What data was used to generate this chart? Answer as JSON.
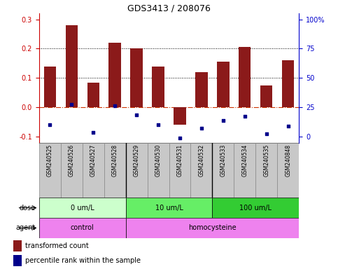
{
  "title": "GDS3413 / 208076",
  "samples": [
    "GSM240525",
    "GSM240526",
    "GSM240527",
    "GSM240528",
    "GSM240529",
    "GSM240530",
    "GSM240531",
    "GSM240532",
    "GSM240533",
    "GSM240534",
    "GSM240535",
    "GSM240848"
  ],
  "red_bars": [
    0.14,
    0.28,
    0.085,
    0.22,
    0.2,
    0.14,
    -0.06,
    0.12,
    0.155,
    0.205,
    0.075,
    0.16
  ],
  "blue_squares_left": [
    -0.06,
    0.01,
    -0.085,
    0.005,
    -0.025,
    -0.06,
    -0.105,
    -0.07,
    -0.045,
    -0.03,
    -0.09,
    -0.065
  ],
  "ylim": [
    -0.12,
    0.32
  ],
  "y_ticks_left": [
    -0.1,
    0.0,
    0.1,
    0.2,
    0.3
  ],
  "y_ticks_right": [
    0,
    25,
    50,
    75,
    100
  ],
  "bar_color": "#8B1A1A",
  "square_color": "#00008B",
  "hline_color": "#CC3300",
  "dotted_line_color": "#000000",
  "grid_yticks": [
    0.1,
    0.2
  ],
  "left_axis_color": "#CC0000",
  "right_axis_color": "#0000CC",
  "dose_colors": [
    "#CCFFCC",
    "#66EE66",
    "#33CC33"
  ],
  "agent_color": "#EE82EE",
  "dose_labels": [
    "0 um/L",
    "10 um/L",
    "100 um/L"
  ],
  "dose_starts": [
    0,
    4,
    8
  ],
  "dose_ends": [
    4,
    8,
    12
  ],
  "agent_labels": [
    "control",
    "homocysteine"
  ],
  "agent_starts": [
    0,
    4
  ],
  "agent_ends": [
    4,
    12
  ],
  "dose_row_label": "dose",
  "agent_row_label": "agent",
  "legend_red": "transformed count",
  "legend_blue": "percentile rank within the sample",
  "cell_color": "#C8C8C8",
  "cell_edge_color": "#888888"
}
